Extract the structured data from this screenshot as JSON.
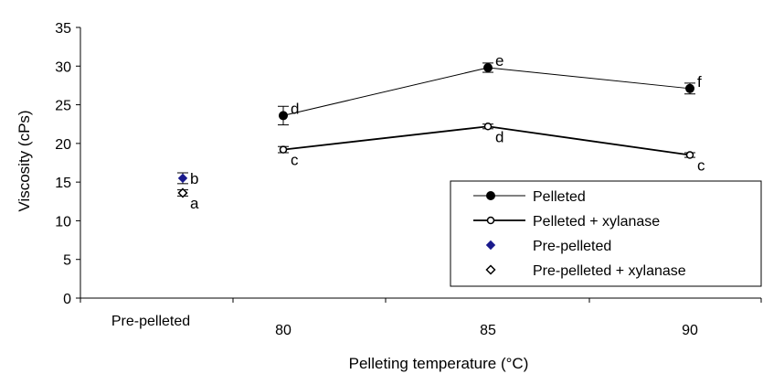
{
  "chart_data": {
    "type": "scatter",
    "title": "",
    "xlabel": "Pelleting temperature (°C)",
    "ylabel": "Viscosity (cPs)",
    "ylim": [
      0,
      35
    ],
    "yticks": [
      0,
      5,
      10,
      15,
      20,
      25,
      30,
      35
    ],
    "categories": [
      "Pre-pelleted",
      "80",
      "85",
      "90"
    ],
    "grid": false,
    "legend_position": "bottom-right",
    "series": [
      {
        "name": "Pelleted",
        "marker": "filled-circle",
        "line": true,
        "color": "#000000",
        "x": [
          "80",
          "85",
          "90"
        ],
        "values": [
          23.6,
          29.8,
          27.1
        ],
        "errors": [
          1.2,
          0.6,
          0.7
        ],
        "letters": [
          "d",
          "e",
          "f"
        ],
        "letter_side": "top-right"
      },
      {
        "name": "Pelleted + xylanase",
        "marker": "open-circle",
        "line": true,
        "color": "#000000",
        "x": [
          "80",
          "85",
          "90"
        ],
        "values": [
          19.2,
          22.2,
          18.5
        ],
        "errors": [
          0.4,
          0.3,
          0.3
        ],
        "letters": [
          "c",
          "d",
          "c"
        ],
        "letter_side": "bottom-right"
      },
      {
        "name": "Pre-pelleted",
        "marker": "filled-diamond",
        "line": false,
        "color": "#1a1a8c",
        "x": [
          "Pre-pelleted"
        ],
        "values": [
          15.5
        ],
        "errors": [
          0.7
        ],
        "letters": [
          "b"
        ],
        "letter_side": "right"
      },
      {
        "name": "Pre-pelleted + xylanase",
        "marker": "open-diamond",
        "line": false,
        "color": "#000000",
        "x": [
          "Pre-pelleted"
        ],
        "values": [
          13.6
        ],
        "errors": [
          0.4
        ],
        "letters": [
          "a"
        ],
        "letter_side": "bottom-right"
      }
    ]
  }
}
